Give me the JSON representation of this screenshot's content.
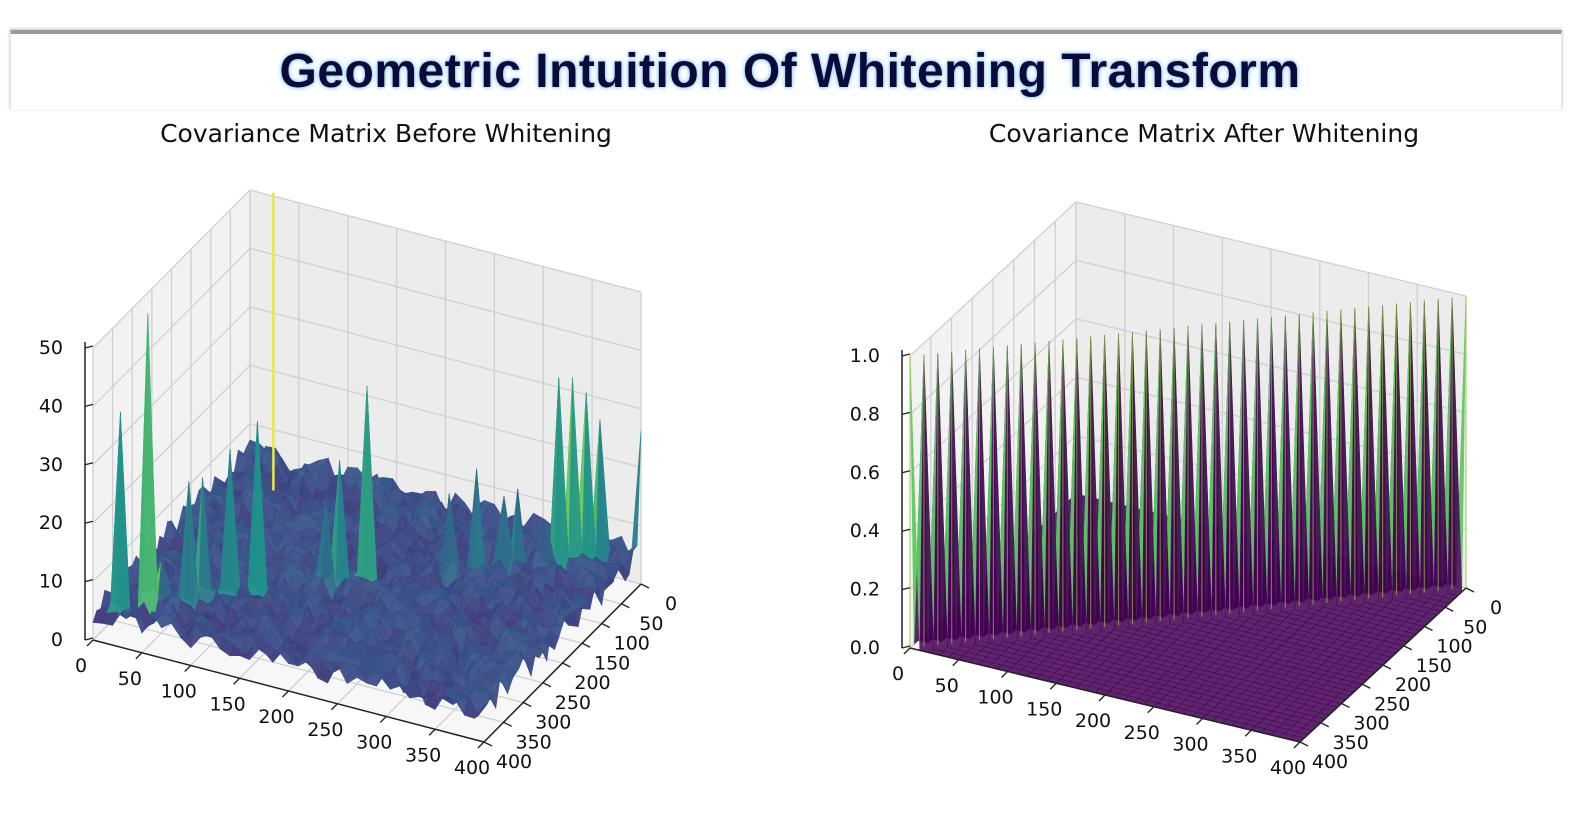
{
  "header": {
    "title": "Geometric Intuition Of Whitening Transform"
  },
  "colors": {
    "viridis_low": "#440154",
    "viridis_mid": "#21918c",
    "viridis_high": "#fde725",
    "grid": "#d0d0d0",
    "pane": "#f2f2f2"
  },
  "chart_data": [
    {
      "type": "surface3d",
      "title": "Covariance Matrix Before Whitening",
      "xlabel": "",
      "ylabel": "",
      "zlabel": "",
      "x_ticks": [
        "0",
        "50",
        "100",
        "150",
        "200",
        "250",
        "300",
        "350",
        "400"
      ],
      "y_ticks": [
        "0",
        "50",
        "100",
        "150",
        "200",
        "250",
        "300",
        "350",
        "400"
      ],
      "z_ticks": [
        "0",
        "10",
        "20",
        "30",
        "40",
        "50"
      ],
      "xlim": [
        0,
        400
      ],
      "ylim": [
        0,
        400
      ],
      "zlim": [
        0,
        50
      ],
      "colormap": "viridis",
      "description_values": {
        "baseline_level": 3,
        "noise_max": 8,
        "diagonal_peak_max": 55
      }
    },
    {
      "type": "surface3d",
      "title": "Covariance Matrix After Whitening",
      "xlabel": "",
      "ylabel": "",
      "zlabel": "",
      "x_ticks": [
        "0",
        "50",
        "100",
        "150",
        "200",
        "250",
        "300",
        "350",
        "400"
      ],
      "y_ticks": [
        "0",
        "50",
        "100",
        "150",
        "200",
        "250",
        "300",
        "350",
        "400"
      ],
      "z_ticks": [
        "0.0",
        "0.2",
        "0.4",
        "0.6",
        "0.8",
        "1.0"
      ],
      "xlim": [
        0,
        400
      ],
      "ylim": [
        0,
        400
      ],
      "zlim": [
        0,
        1.0
      ],
      "colormap": "viridis",
      "description_values": {
        "off_diagonal": 0.0,
        "diagonal": 1.0
      }
    }
  ]
}
